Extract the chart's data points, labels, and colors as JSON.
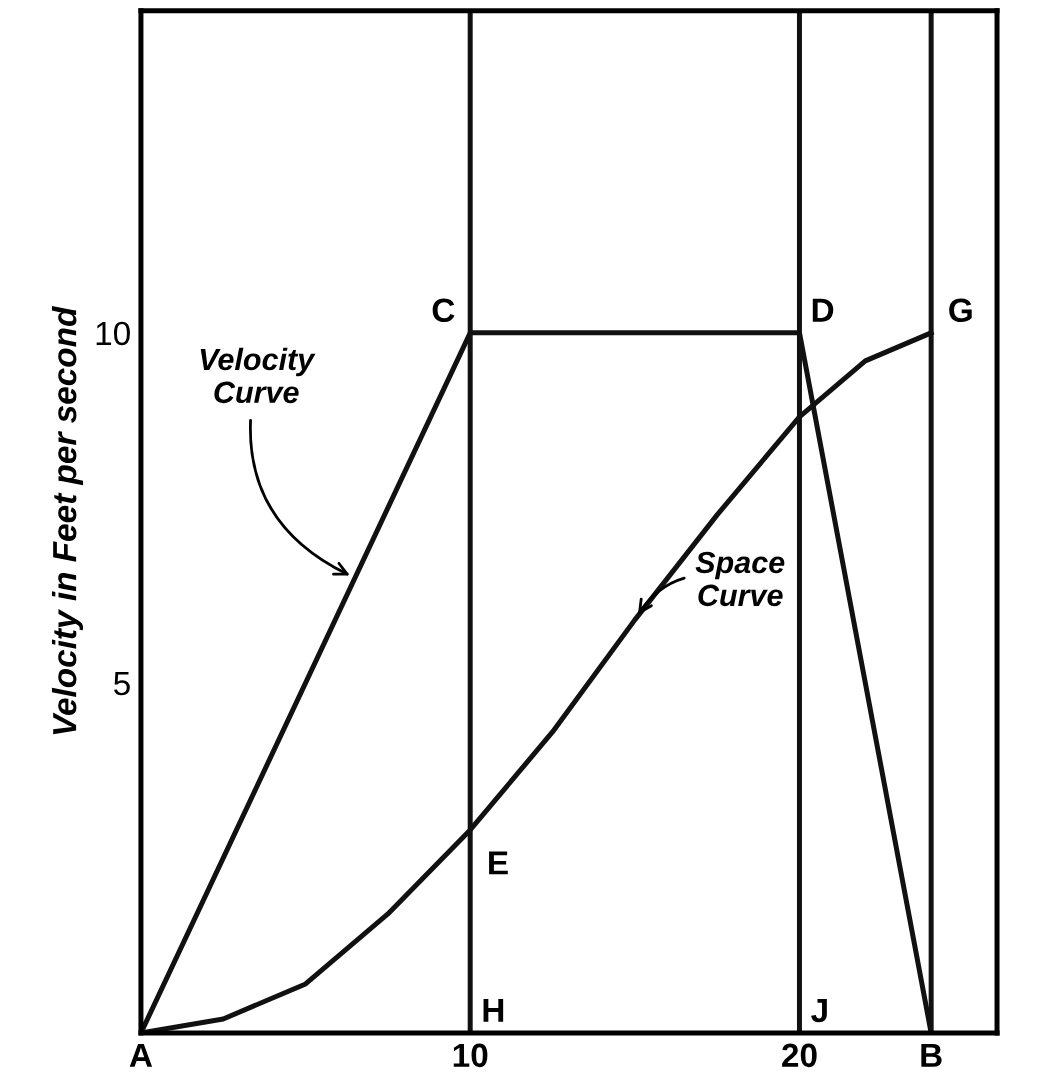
{
  "chart_data": {
    "type": "line",
    "ylabel": "Velocity in Feet per second",
    "xlim": [
      0,
      26
    ],
    "ylim": [
      0,
      14.6
    ],
    "xticks": [
      {
        "value": 0,
        "label": "A"
      },
      10,
      20,
      {
        "value": 24,
        "label": "B"
      }
    ],
    "yticks": [
      5,
      10
    ],
    "grid": false,
    "marker": "none",
    "line_style": "solid",
    "series": [
      {
        "color": "#111111",
        "x": [
          0,
          10,
          20,
          24
        ],
        "values": [
          0,
          10,
          10,
          0
        ]
      },
      {
        "color": "#111111",
        "x": [
          0,
          2.5,
          5,
          7.5,
          10,
          12.5,
          15,
          17.5,
          20,
          22,
          24
        ],
        "values": [
          0,
          0.2,
          0.7,
          1.7,
          2.9,
          4.3,
          5.9,
          7.4,
          8.8,
          9.6,
          10
        ]
      }
    ],
    "ref_lines": [
      {
        "axis": "x",
        "value": 10,
        "color": "#111111"
      },
      {
        "axis": "x",
        "value": 20,
        "color": "#111111"
      },
      {
        "axis": "x",
        "value": 24,
        "color": "#111111"
      }
    ],
    "annotations": [
      {
        "text": "C",
        "x": 10,
        "y": 10
      },
      {
        "text": "D",
        "x": 20,
        "y": 10
      },
      {
        "text": "G",
        "x": 24,
        "y": 10
      },
      {
        "text": "E",
        "x": 10,
        "y": 2.9
      },
      {
        "text": "H",
        "x": 10,
        "y": 0
      },
      {
        "text": "J",
        "x": 20,
        "y": 0
      },
      {
        "text": "Velocity\nCurve",
        "x": 6.5,
        "y": 6.5
      },
      {
        "text": "Space\nCurve",
        "x": 15,
        "y": 5.9
      }
    ]
  }
}
